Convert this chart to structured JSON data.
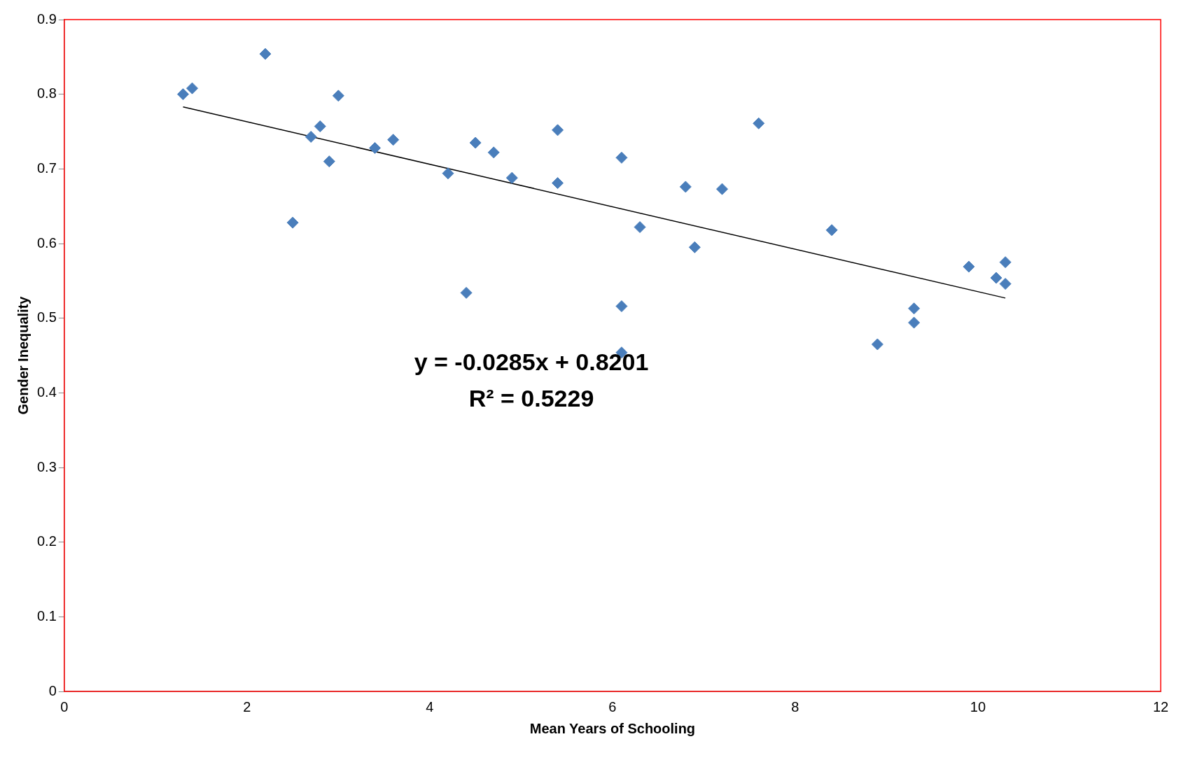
{
  "chart_data": {
    "type": "scatter",
    "xlabel": "Mean Years of Schooling",
    "ylabel": "Gender Inequality",
    "xlim": [
      0,
      12
    ],
    "xticks": [
      0,
      2,
      4,
      6,
      8,
      10,
      12
    ],
    "ylim": [
      0,
      0.9
    ],
    "yticks": [
      0,
      0.1,
      0.2,
      0.3,
      0.4,
      0.5,
      0.6,
      0.7,
      0.8,
      0.9
    ],
    "grid": false,
    "legend": false,
    "marker": "diamond",
    "annotations": [
      "y = -0.0285x + 0.8201",
      "R² = 0.5229"
    ],
    "series": [
      {
        "color": "#4a7ebb",
        "x": [
          1.3,
          1.4,
          2.2,
          2.5,
          2.7,
          2.8,
          2.9,
          3.0,
          3.4,
          3.6,
          4.2,
          4.4,
          4.5,
          4.7,
          4.9,
          5.4,
          5.4,
          6.1,
          6.1,
          6.1,
          6.3,
          6.8,
          6.9,
          7.2,
          7.6,
          8.4,
          8.9,
          9.3,
          9.3,
          9.9,
          10.2,
          10.3,
          10.3
        ],
        "values": [
          0.8,
          0.808,
          0.854,
          0.628,
          0.743,
          0.757,
          0.71,
          0.798,
          0.728,
          0.739,
          0.694,
          0.534,
          0.735,
          0.722,
          0.688,
          0.752,
          0.681,
          0.715,
          0.516,
          0.454,
          0.622,
          0.676,
          0.595,
          0.673,
          0.761,
          0.618,
          0.465,
          0.513,
          0.494,
          0.569,
          0.554,
          0.575,
          0.546
        ]
      },
      {
        "type": "line",
        "color": "#000000",
        "marker": "none",
        "x": [
          1.3,
          10.3
        ],
        "values": [
          0.783,
          0.527
        ]
      }
    ]
  }
}
